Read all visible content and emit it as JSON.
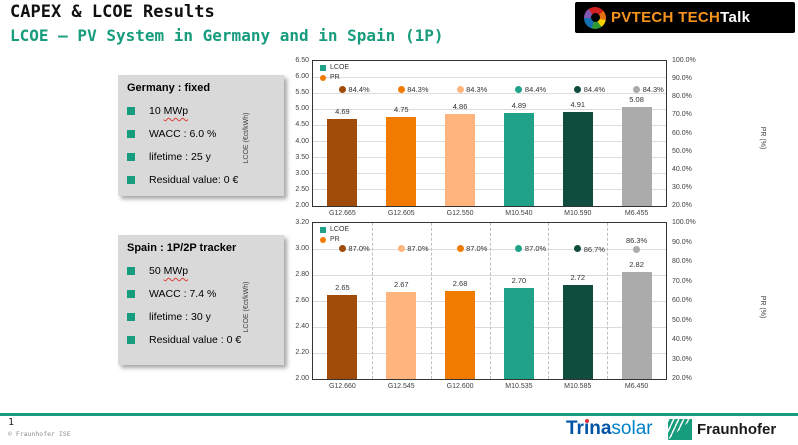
{
  "slide": {
    "title": "CAPEX & LCOE Results",
    "subtitle": "LCOE – PV System in Germany and in Spain (1P)",
    "accent_color": "#179C7D",
    "page_number": "1",
    "copyright": "© Fraunhofer ISE"
  },
  "pvtech_logo": {
    "word1": "PVTECH",
    "word2": "TECH",
    "word3": "Talk",
    "orange": "#F7941E"
  },
  "info_boxes": [
    {
      "title": "Germany : fixed",
      "items": [
        {
          "segments": [
            {
              "text": "10 "
            },
            {
              "text": "MWp",
              "wavy": true
            }
          ]
        },
        {
          "segments": [
            {
              "text": "WACC : 6.0 %"
            }
          ]
        },
        {
          "segments": [
            {
              "text": "lifetime : 25 y"
            }
          ]
        },
        {
          "segments": [
            {
              "text": "Residual value: 0 €"
            }
          ]
        }
      ]
    },
    {
      "title": "Spain : 1P/2P tracker",
      "items": [
        {
          "segments": [
            {
              "text": "50 "
            },
            {
              "text": "MWp",
              "wavy": true
            }
          ]
        },
        {
          "segments": [
            {
              "text": "WACC : 7.4 %"
            }
          ]
        },
        {
          "segments": [
            {
              "text": "lifetime : 30 y"
            }
          ]
        },
        {
          "segments": [
            {
              "text": "Residual value : 0 €"
            }
          ]
        }
      ]
    }
  ],
  "chart_data": [
    {
      "type": "bar",
      "title": "",
      "categories": [
        "G12.665",
        "G12.605",
        "G12.550",
        "M10.540",
        "M10.590",
        "M6.455"
      ],
      "series": [
        {
          "name": "LCOE",
          "axis": "left",
          "values": [
            4.69,
            4.75,
            4.86,
            4.89,
            4.91,
            5.08
          ]
        },
        {
          "name": "PR",
          "axis": "right",
          "values": [
            84.4,
            84.3,
            84.3,
            84.4,
            84.4,
            84.3
          ]
        }
      ],
      "bar_value_labels": [
        "4.69",
        "4.75",
        "4.86",
        "4.89",
        "4.91",
        "5.08"
      ],
      "pr_value_labels": [
        "84.4%",
        "84.3%",
        "84.3%",
        "84.4%",
        "84.4%",
        "84.3%"
      ],
      "pr_label_positions": [
        "right",
        "right",
        "right",
        "right",
        "right",
        "right"
      ],
      "bar_colors": [
        "#A04B07",
        "#F17A00",
        "#FFB57D",
        "#1FA287",
        "#0F4D3E",
        "#ABABAB"
      ],
      "xlabel": "",
      "ylabel": "LCOE (€ct/kWh)",
      "y2label": "PR (%)",
      "ylim": [
        2.0,
        6.5
      ],
      "y2lim": [
        20,
        100
      ],
      "ytick_labels": [
        "6.50",
        "6.00",
        "5.50",
        "5.00",
        "4.50",
        "4.00",
        "3.50",
        "3.00",
        "2.50",
        "2.00"
      ],
      "y2tick_labels": [
        "100.0%",
        "90.0%",
        "80.0%",
        "70.0%",
        "60.0%",
        "50.0%",
        "40.0%",
        "30.0%",
        "20.0%"
      ],
      "legend": [
        {
          "label": "LCOE",
          "color": "#1FA287",
          "shape": "square"
        },
        {
          "label": "PR",
          "color": "#F17A00",
          "shape": "circle"
        }
      ],
      "legend_position": "top-left-inside",
      "grid": true,
      "vertical_gridlines": false
    },
    {
      "type": "bar",
      "title": "",
      "categories": [
        "G12.660",
        "G12.545",
        "G12.600",
        "M10.535",
        "M10.585",
        "M6.450"
      ],
      "series": [
        {
          "name": "LCOE",
          "axis": "left",
          "values": [
            2.65,
            2.67,
            2.68,
            2.7,
            2.72,
            2.82
          ]
        },
        {
          "name": "PR",
          "axis": "right",
          "values": [
            87.0,
            87.0,
            87.0,
            87.0,
            86.7,
            86.3
          ]
        }
      ],
      "bar_value_labels": [
        "2.65",
        "2.67",
        "2.68",
        "2.70",
        "2.72",
        "2.82"
      ],
      "pr_value_labels": [
        "87.0%",
        "87.0%",
        "87.0%",
        "87.0%",
        "86.7%",
        "86.3%"
      ],
      "pr_label_positions": [
        "right",
        "right",
        "right",
        "right",
        "right",
        "above"
      ],
      "bar_colors": [
        "#A04B07",
        "#FFB57D",
        "#F17A00",
        "#1FA287",
        "#0F4D3E",
        "#ABABAB"
      ],
      "xlabel": "",
      "ylabel": "LCOE (€ct/kWh)",
      "y2label": "PR (%)",
      "ylim": [
        2.0,
        3.2
      ],
      "y2lim": [
        20,
        100
      ],
      "ytick_labels": [
        "3.20",
        "3.00",
        "2.80",
        "2.60",
        "2.40",
        "2.20",
        "2.00"
      ],
      "y2tick_labels": [
        "100.0%",
        "90.0%",
        "80.0%",
        "70.0%",
        "60.0%",
        "50.0%",
        "40.0%",
        "30.0%",
        "20.0%"
      ],
      "legend": [
        {
          "label": "LCOE",
          "color": "#1FA287",
          "shape": "square"
        },
        {
          "label": "PR",
          "color": "#F17A00",
          "shape": "circle"
        }
      ],
      "legend_position": "top-left-inside",
      "grid": true,
      "vertical_gridlines": true
    }
  ],
  "footer_logos": {
    "trina": {
      "part1": "Tr",
      "dotless_i": "ı",
      "part2": "na",
      "part3": "solar"
    },
    "fraunhofer": "Fraunhofer"
  }
}
